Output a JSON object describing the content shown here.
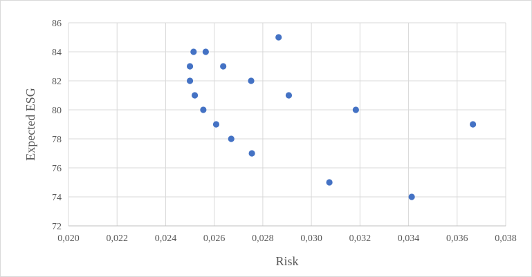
{
  "chart_data": {
    "type": "scatter",
    "title": "",
    "xlabel": "Risk",
    "ylabel": "Expected ESG",
    "xlim": [
      0.02,
      0.038
    ],
    "ylim": [
      72,
      86
    ],
    "x_ticks": [
      "0,020",
      "0,022",
      "0,024",
      "0,026",
      "0,028",
      "0,030",
      "0,032",
      "0,034",
      "0,036",
      "0,038"
    ],
    "y_ticks": [
      "72",
      "74",
      "76",
      "78",
      "80",
      "82",
      "84",
      "86"
    ],
    "grid": "on",
    "legend": "none",
    "series": [
      {
        "color": "#4472c4",
        "points": [
          {
            "x": 0.02865,
            "y": 85
          },
          {
            "x": 0.02515,
            "y": 84
          },
          {
            "x": 0.02565,
            "y": 84
          },
          {
            "x": 0.025,
            "y": 83
          },
          {
            "x": 0.02637,
            "y": 83
          },
          {
            "x": 0.025,
            "y": 82
          },
          {
            "x": 0.02752,
            "y": 82
          },
          {
            "x": 0.0252,
            "y": 81
          },
          {
            "x": 0.02907,
            "y": 81
          },
          {
            "x": 0.02555,
            "y": 80
          },
          {
            "x": 0.03183,
            "y": 80
          },
          {
            "x": 0.02608,
            "y": 79
          },
          {
            "x": 0.03665,
            "y": 79
          },
          {
            "x": 0.0267,
            "y": 78
          },
          {
            "x": 0.02755,
            "y": 77
          },
          {
            "x": 0.03074,
            "y": 75
          },
          {
            "x": 0.03413,
            "y": 74
          }
        ]
      }
    ]
  }
}
